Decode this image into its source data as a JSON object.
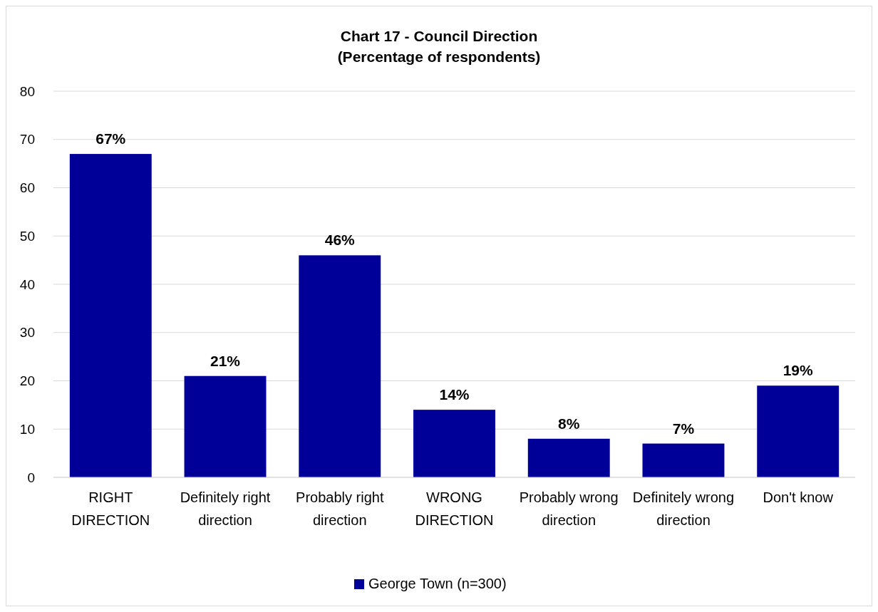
{
  "chart_data": {
    "type": "bar",
    "title": "Chart 17 - Council Direction\n(Percentage of respondents)",
    "categories": [
      "RIGHT DIRECTION",
      "Definitely right direction",
      "Probably right direction",
      "WRONG DIRECTION",
      "Probably wrong direction",
      "Definitely wrong direction",
      "Don't know"
    ],
    "series": [
      {
        "name": "George Town (n=300)",
        "color": "#000099",
        "values": [
          67,
          21,
          46,
          14,
          8,
          7,
          19
        ],
        "value_labels": [
          "67%",
          "21%",
          "46%",
          "14%",
          "8%",
          "7%",
          "19%"
        ]
      }
    ],
    "ylim": [
      0,
      80
    ],
    "yticks": [
      0,
      10,
      20,
      30,
      40,
      50,
      60,
      70,
      80
    ],
    "grid": "y",
    "legend": "bottom"
  }
}
